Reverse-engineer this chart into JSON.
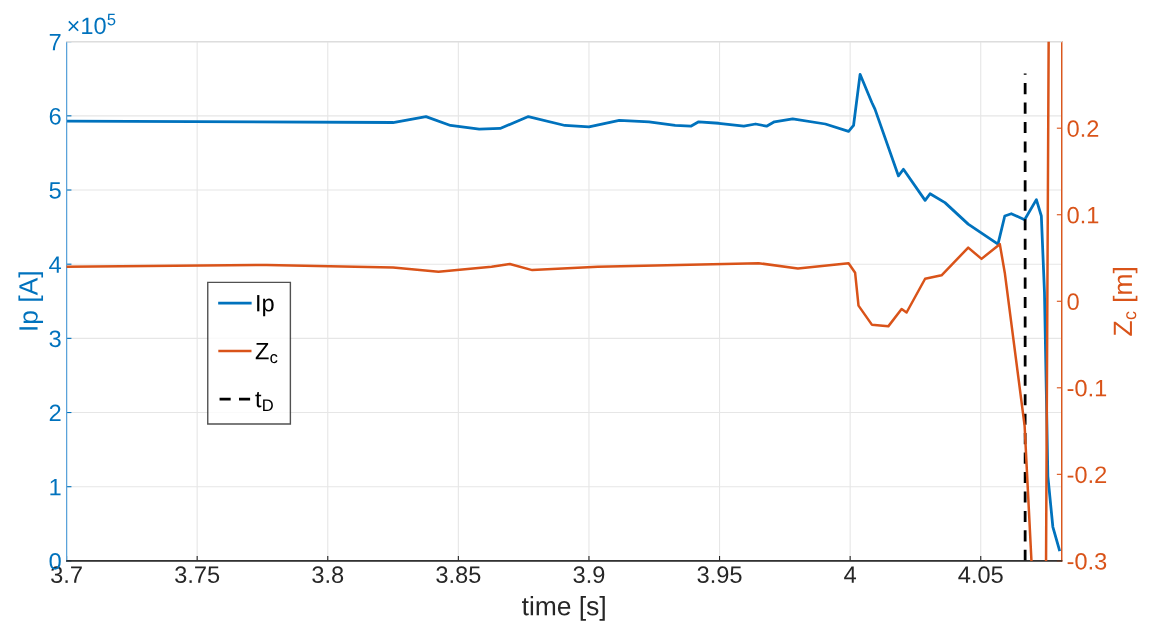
{
  "chart_data": {
    "type": "line",
    "xlabel": "time [s]",
    "ylabel": "Ip [A]",
    "y2label": "Z$_{c}$ [m]",
    "annotations": [
      "×10$^{5}$"
    ],
    "xlim": [
      3.7,
      4.081
    ],
    "xticks": [
      3.7,
      3.75,
      3.8,
      3.85,
      3.9,
      3.95,
      4,
      4.05
    ],
    "ylim": [
      0,
      7
    ],
    "yticks": [
      0,
      1,
      2,
      3,
      4,
      5,
      6,
      7
    ],
    "y2lim": [
      -0.3,
      0.3
    ],
    "y2ticks": [
      -0.3,
      -0.2,
      -0.1,
      0,
      0.1,
      0.2
    ],
    "grid": true,
    "legend": "left",
    "line_style": "solid",
    "marker": "none",
    "series": [
      {
        "name": "Ip",
        "color": "#0072bd",
        "x": [
          3.7,
          3.825,
          3.8376,
          3.847,
          3.858,
          3.866,
          3.8768,
          3.8908,
          3.9,
          3.9116,
          3.923,
          3.933,
          3.939,
          3.942,
          3.9497,
          3.9593,
          3.9638,
          3.968,
          3.971,
          3.978,
          3.9905,
          3.9994,
          4.0013,
          4.0038,
          4.0083,
          4.0095,
          4.0185,
          4.0204,
          4.0287,
          4.0306,
          4.0363,
          4.0452,
          4.0566,
          4.0592,
          4.0617,
          4.0668,
          4.0713,
          4.0732,
          4.0744,
          4.0757,
          4.0776,
          4.0801
        ],
        "values": [
          5.93,
          5.91,
          5.99,
          5.87,
          5.82,
          5.83,
          5.99,
          5.87,
          5.85,
          5.94,
          5.92,
          5.87,
          5.86,
          5.92,
          5.9,
          5.86,
          5.89,
          5.86,
          5.92,
          5.96,
          5.89,
          5.79,
          5.87,
          6.56,
          6.18,
          6.09,
          5.19,
          5.28,
          4.86,
          4.95,
          4.83,
          4.54,
          4.27,
          4.65,
          4.68,
          4.6,
          4.87,
          4.65,
          3.62,
          1.14,
          0.46,
          0.15
        ]
      },
      {
        "name": "Z$_{c}$",
        "color": "#d95319",
        "axis": "y2",
        "x": [
          3.7,
          3.7766,
          3.825,
          3.8424,
          3.8627,
          3.8697,
          3.8783,
          3.9034,
          3.965,
          3.98,
          3.9994,
          4.0019,
          4.0032,
          4.0083,
          4.0146,
          4.0197,
          4.0216,
          4.0287,
          4.035,
          4.0452,
          4.0503,
          4.0573,
          4.0592,
          4.0668,
          4.0694,
          4.072,
          4.075,
          4.076
        ],
        "values": [
          0.04,
          0.042,
          0.039,
          0.034,
          0.04,
          0.043,
          0.036,
          0.04,
          0.044,
          0.038,
          0.044,
          0.033,
          -0.005,
          -0.027,
          -0.029,
          -0.009,
          -0.013,
          0.026,
          0.03,
          0.062,
          0.049,
          0.066,
          0.033,
          -0.144,
          -0.299,
          null,
          -0.3,
          0.3
        ]
      },
      {
        "name": "t$_{D}$",
        "color": "#000000",
        "x": [
          4.067,
          4.067
        ],
        "values": [
          0,
          6.57
        ],
        "line_style": "dashed"
      }
    ]
  }
}
